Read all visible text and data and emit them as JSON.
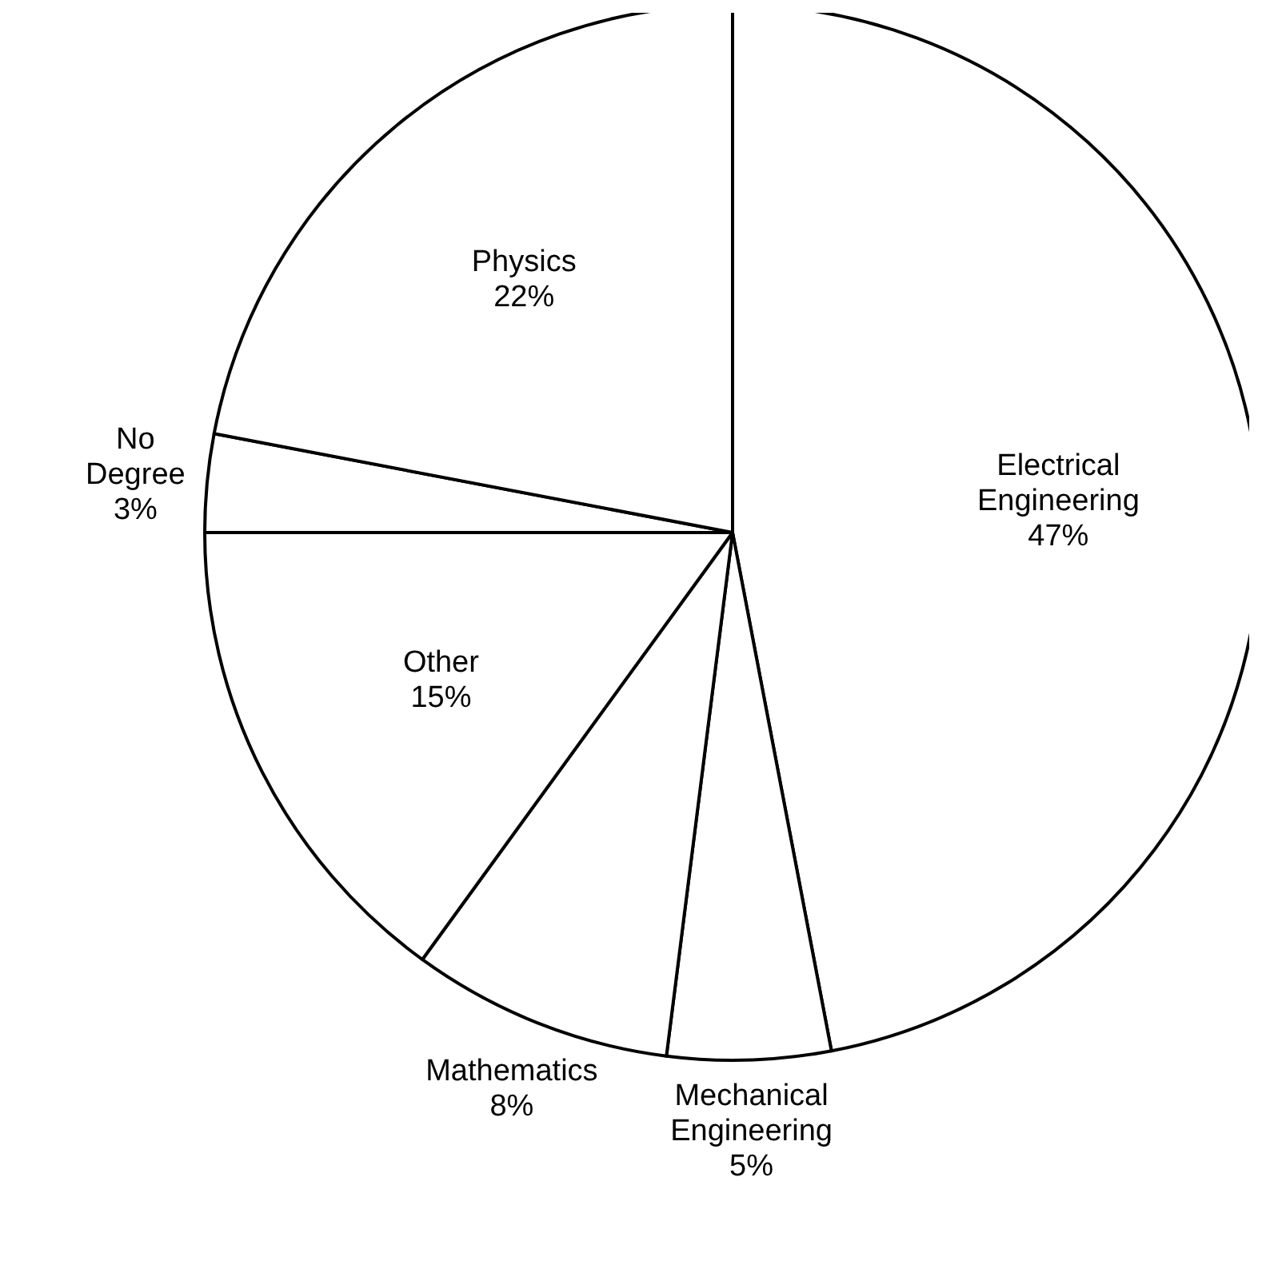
{
  "chart_data": {
    "type": "pie",
    "categories": [
      "Electrical Engineering",
      "Mechanical Engineering",
      "Mathematics",
      "Other",
      "No Degree",
      "Physics"
    ],
    "values": [
      47,
      5,
      8,
      15,
      3,
      22
    ],
    "colors": [
      "#ffffff",
      "#ffffff",
      "#ffffff",
      "#ffffff",
      "#ffffff",
      "#ffffff"
    ],
    "value_labels": [
      "47%",
      "5%",
      "8%",
      "15%",
      "3%",
      "22%"
    ]
  }
}
